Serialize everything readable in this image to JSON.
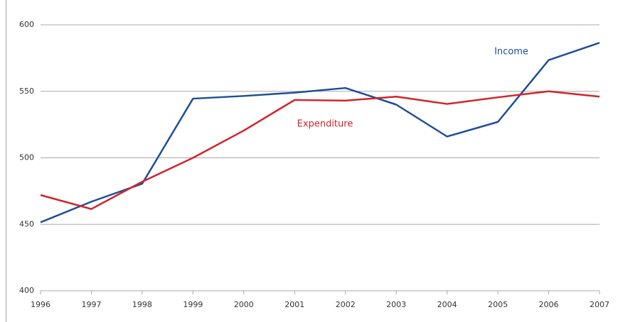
{
  "chart_data": {
    "type": "line",
    "x": [
      1996,
      1997,
      1998,
      1999,
      2000,
      2001,
      2002,
      2003,
      2004,
      2005,
      2006,
      2007
    ],
    "xlim": [
      1996,
      2007
    ],
    "xticks": [
      1996,
      1997,
      1998,
      1999,
      2000,
      2001,
      2002,
      2003,
      2004,
      2005,
      2006,
      2007
    ],
    "ylim": [
      400,
      600
    ],
    "yticks": [
      400,
      450,
      500,
      550,
      600
    ],
    "grid": true,
    "series": [
      {
        "name": "Income",
        "color": "#1f4e99",
        "values": [
          451.5,
          467,
          480.5,
          544.5,
          546.5,
          549,
          552.5,
          540,
          516,
          527,
          573.5,
          586.5
        ]
      },
      {
        "name": "Expenditure",
        "color": "#d2232a",
        "values": [
          472,
          461.5,
          482,
          500,
          520.5,
          543.5,
          543,
          546,
          540.5,
          545.5,
          550,
          546
        ]
      }
    ]
  }
}
